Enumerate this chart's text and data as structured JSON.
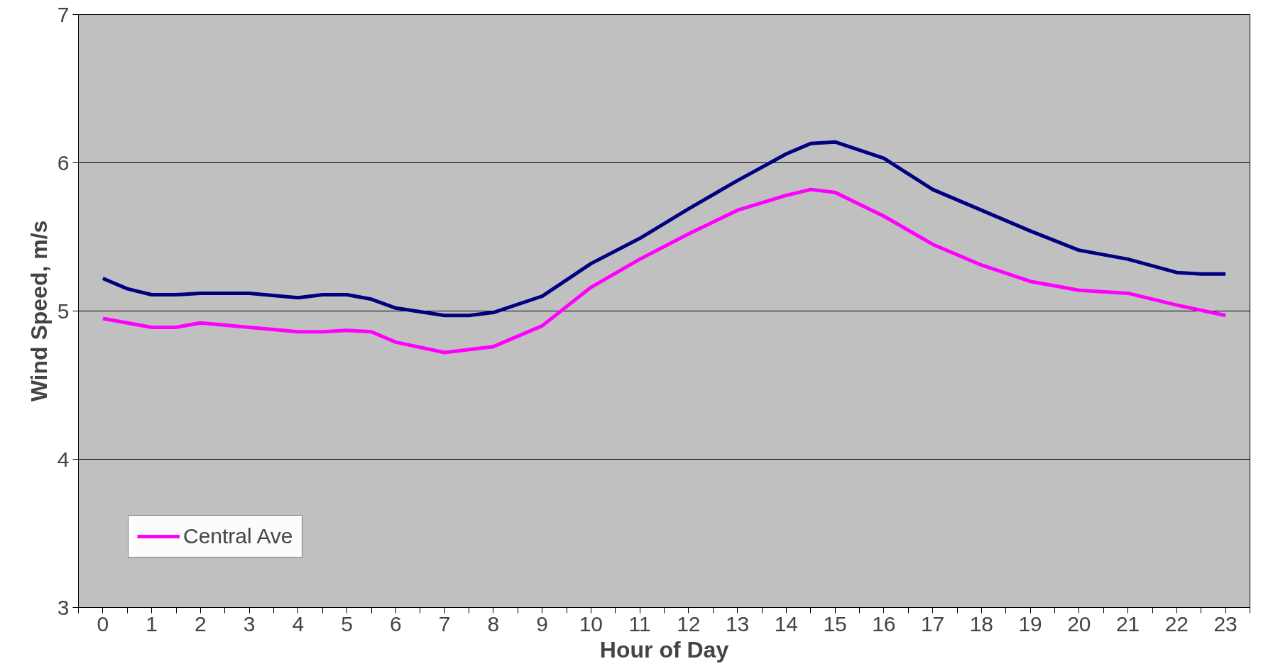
{
  "chart_data": {
    "type": "line",
    "xlabel": "Hour of Day",
    "ylabel": "Wind Speed, m/s",
    "xlim": [
      -0.5,
      23.5
    ],
    "xticks": [
      0,
      1,
      2,
      3,
      4,
      5,
      6,
      7,
      8,
      9,
      10,
      11,
      12,
      13,
      14,
      15,
      16,
      17,
      18,
      19,
      20,
      21,
      22,
      23,
      {
        "value": -0.5,
        "label": null
      },
      {
        "value": 0.5,
        "label": null
      },
      {
        "value": 1.5,
        "label": null
      },
      {
        "value": 2.5,
        "label": null
      },
      {
        "value": 3.5,
        "label": null
      },
      {
        "value": 4.5,
        "label": null
      },
      {
        "value": 5.5,
        "label": null
      },
      {
        "value": 6.5,
        "label": null
      },
      {
        "value": 7.5,
        "label": null
      },
      {
        "value": 8.5,
        "label": null
      },
      {
        "value": 9.5,
        "label": null
      },
      {
        "value": 10.5,
        "label": null
      },
      {
        "value": 11.5,
        "label": null
      },
      {
        "value": 12.5,
        "label": null
      },
      {
        "value": 13.5,
        "label": null
      },
      {
        "value": 14.5,
        "label": null
      },
      {
        "value": 15.5,
        "label": null
      },
      {
        "value": 16.5,
        "label": null
      },
      {
        "value": 17.5,
        "label": null
      },
      {
        "value": 18.5,
        "label": null
      },
      {
        "value": 19.5,
        "label": null
      },
      {
        "value": 20.5,
        "label": null
      },
      {
        "value": 21.5,
        "label": null
      },
      {
        "value": 22.5,
        "label": null
      },
      {
        "value": 23.5,
        "label": null
      }
    ],
    "ylim": [
      3,
      7
    ],
    "yticks": [
      3,
      4,
      5,
      6,
      7
    ],
    "grid": "y",
    "legend": "bottom left",
    "marker": "none",
    "line_style": "solid",
    "series": [
      {
        "color": "#000080",
        "x": [
          0,
          0.5,
          1,
          1.5,
          2,
          3,
          4,
          4.5,
          5,
          5.5,
          6,
          7,
          7.5,
          8,
          9,
          10,
          11,
          12,
          13,
          14,
          14.5,
          15,
          16,
          17,
          18,
          19,
          20,
          21,
          22,
          22.5,
          23
        ],
        "values": [
          5.22,
          5.15,
          5.11,
          5.11,
          5.12,
          5.12,
          5.09,
          5.11,
          5.11,
          5.08,
          5.02,
          4.97,
          4.97,
          4.99,
          5.1,
          5.32,
          5.49,
          5.69,
          5.88,
          6.06,
          6.13,
          6.14,
          6.03,
          5.82,
          5.68,
          5.54,
          5.41,
          5.35,
          5.26,
          5.25,
          5.25
        ]
      },
      {
        "name": "Central Ave",
        "color": "#ff00ff",
        "x": [
          0,
          1,
          1.5,
          2,
          3,
          4,
          4.5,
          5,
          5.5,
          6,
          7,
          8,
          9,
          10,
          11,
          12,
          13,
          14,
          14.5,
          15,
          16,
          17,
          18,
          19,
          20,
          21,
          22,
          23
        ],
        "values": [
          4.95,
          4.89,
          4.89,
          4.92,
          4.89,
          4.86,
          4.86,
          4.87,
          4.86,
          4.79,
          4.72,
          4.76,
          4.9,
          5.16,
          5.35,
          5.52,
          5.68,
          5.78,
          5.82,
          5.8,
          5.64,
          5.45,
          5.31,
          5.2,
          5.14,
          5.12,
          5.04,
          4.97
        ]
      }
    ]
  }
}
